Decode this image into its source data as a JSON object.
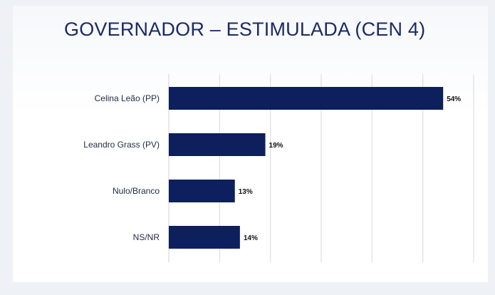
{
  "slide": {
    "title": "GOVERNADOR – ESTIMULADA (CEN 4)"
  },
  "chart_data": {
    "type": "bar",
    "orientation": "horizontal",
    "categories": [
      "Celina Leão (PP)",
      "Leandro Grass (PV)",
      "Nulo/Branco",
      "NS/NR"
    ],
    "values": [
      54,
      19,
      13,
      14
    ],
    "value_labels": [
      "54%",
      "19%",
      "13%",
      "14%"
    ],
    "title": "GOVERNADOR – ESTIMULADA (CEN 4)",
    "xlabel": "",
    "ylabel": "",
    "xlim": [
      0,
      60
    ],
    "grid": true,
    "bar_color": "#0d1f5c",
    "gridline_color": "#d6d9e0"
  }
}
